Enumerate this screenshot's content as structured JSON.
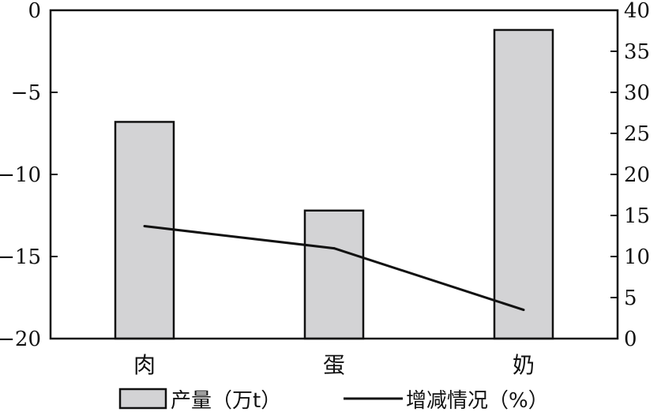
{
  "chart_data": {
    "type": "bar",
    "categories": [
      "肉",
      "蛋",
      "奶"
    ],
    "series": [
      {
        "name": "产量（万t）",
        "type": "bar",
        "axis": "left",
        "values": [
          -6.8,
          -12.2,
          -1.2
        ],
        "color": "#d3d3d5"
      },
      {
        "name": "增减情况（%）",
        "type": "line",
        "axis": "right",
        "values": [
          13.7,
          11.0,
          3.5
        ],
        "color": "#111111"
      }
    ],
    "left_axis": {
      "ylim": [
        -20,
        0
      ],
      "ticks": [
        0,
        -5,
        -10,
        -15,
        -20
      ],
      "tick_labels": [
        "0",
        "−5",
        "−10",
        "−15",
        "−20"
      ]
    },
    "right_axis": {
      "ylim": [
        0,
        40
      ],
      "ticks": [
        0,
        5,
        10,
        15,
        20,
        25,
        30,
        35,
        40
      ],
      "tick_labels": [
        "0",
        "5",
        "10",
        "15",
        "20",
        "25",
        "30",
        "35",
        "40"
      ]
    },
    "legend_position": "bottom",
    "grid": false
  }
}
